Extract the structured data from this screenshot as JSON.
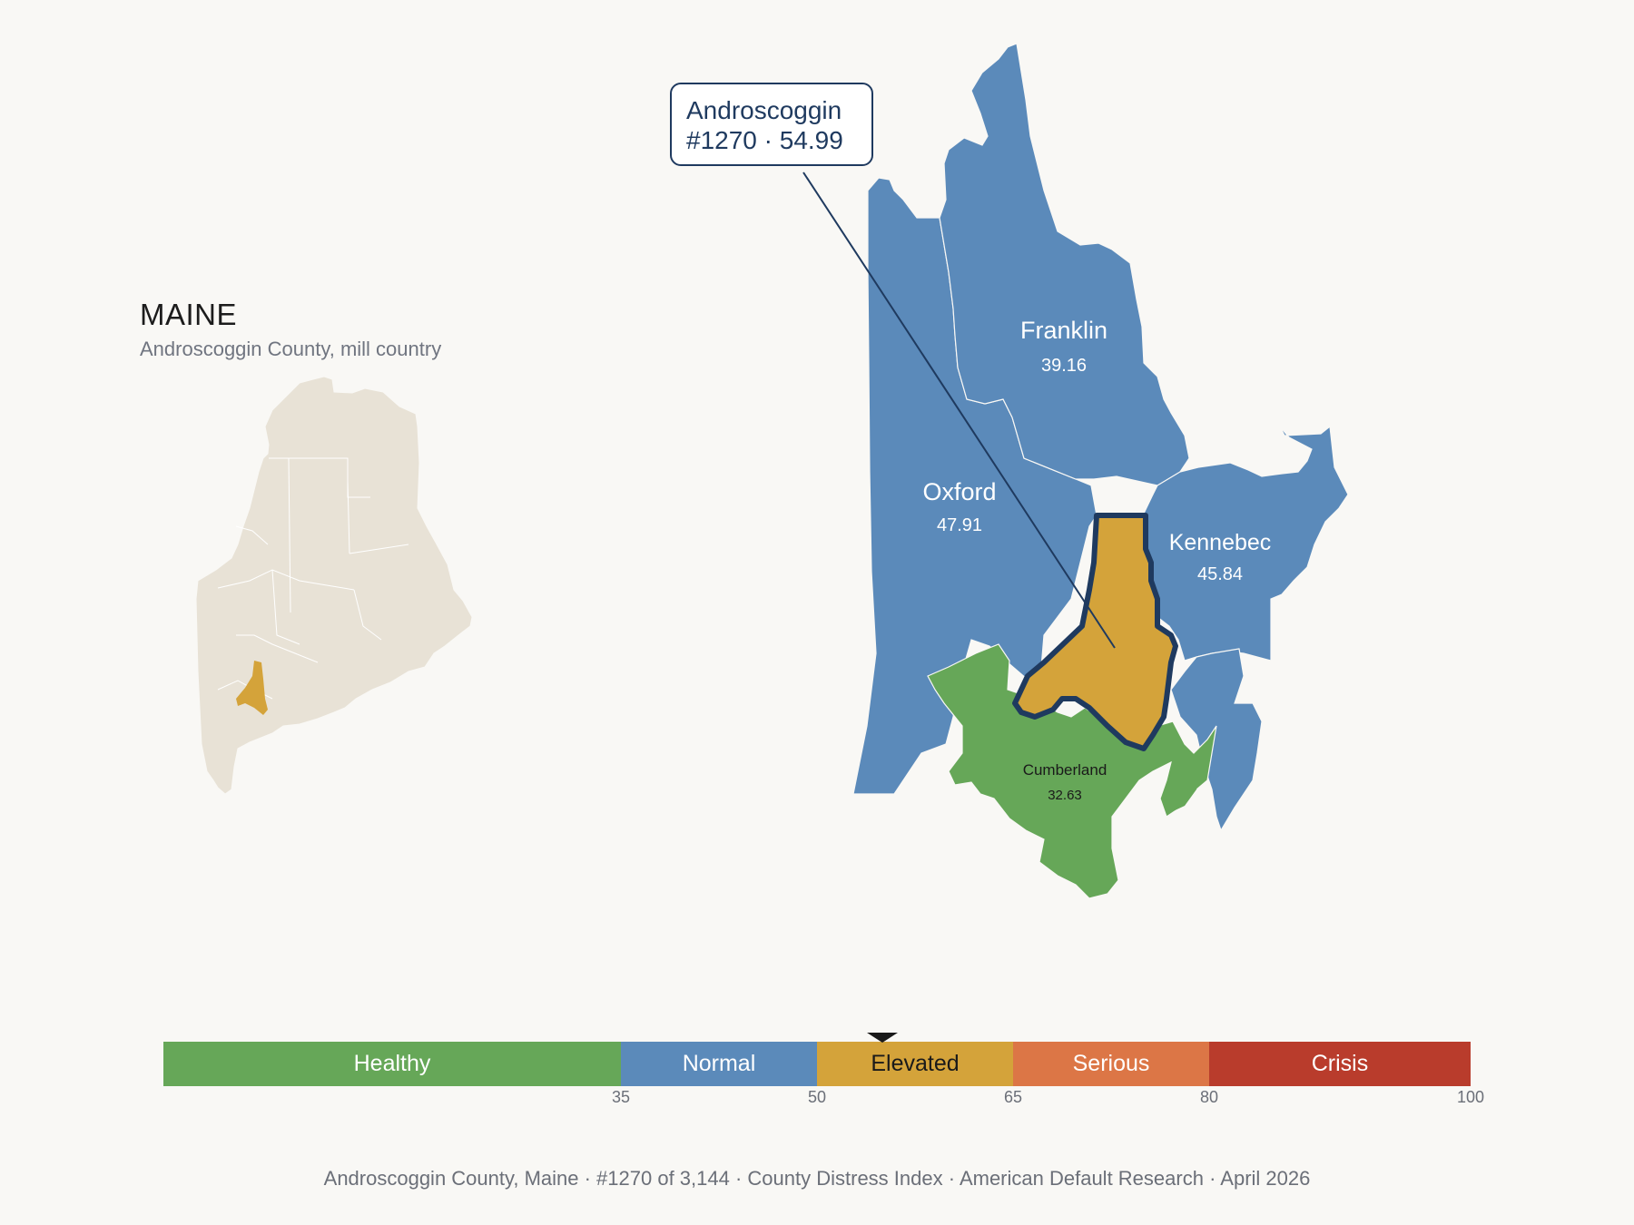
{
  "state": {
    "title": "MAINE",
    "subtitle": "Androscoggin County, mill country"
  },
  "focus": {
    "name": "Androscoggin",
    "callout_line2": "#1270 · 54.99",
    "rank": 1270,
    "score": 54.99
  },
  "counties": {
    "franklin": {
      "name": "Franklin",
      "score": "39.16",
      "color": "#5b8aba"
    },
    "oxford": {
      "name": "Oxford",
      "score": "47.91",
      "color": "#5b8aba"
    },
    "kennebec": {
      "name": "Kennebec",
      "score": "45.84",
      "color": "#5b8aba"
    },
    "cumberland": {
      "name": "Cumberland",
      "score": "32.63",
      "color": "#66a758"
    },
    "androscoggin": {
      "name": "Androscoggin",
      "score": "54.99",
      "color": "#d4a33a"
    }
  },
  "scale": {
    "segments": [
      {
        "label": "Healthy",
        "color": "#66a758"
      },
      {
        "label": "Normal",
        "color": "#5b8aba"
      },
      {
        "label": "Elevated",
        "color": "#d4a33a"
      },
      {
        "label": "Serious",
        "color": "#dc7646"
      },
      {
        "label": "Crisis",
        "color": "#b93c2c"
      }
    ],
    "ticks": [
      "35",
      "50",
      "65",
      "80",
      "100"
    ],
    "pointer_value": 54.99
  },
  "footer": "Androscoggin County, Maine  ·  #1270 of 3,144  ·  County Distress Index  ·  American Default Research  ·  April 2026"
}
